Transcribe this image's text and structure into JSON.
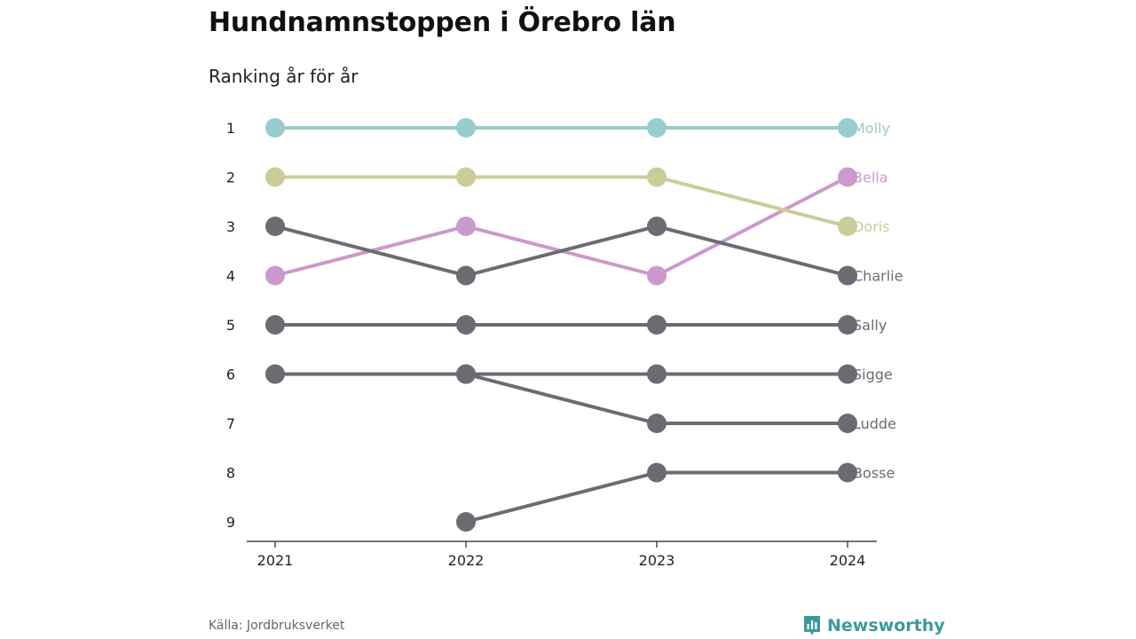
{
  "title": "Hundnamnstoppen i Örebro län",
  "subtitle": "Ranking år för år",
  "source": "Källa: Jordbruksverket",
  "brand": "Newsworthy",
  "colors": {
    "molly": "#99cccc",
    "doris": "#cccc99",
    "bella": "#cc99cc",
    "other": "#6b6b72",
    "axis": "#222222",
    "brand": "#3b9b9a"
  },
  "chart_data": {
    "type": "line",
    "x": [
      "2021",
      "2022",
      "2023",
      "2024"
    ],
    "y_ticks": [
      "1",
      "2",
      "3",
      "4",
      "5",
      "6",
      "7",
      "8",
      "9"
    ],
    "y_inverted": true,
    "ylim": [
      1,
      9
    ],
    "grid": false,
    "legend": "direct labels at right end",
    "series": [
      {
        "name": "Molly",
        "color": "#99cccc",
        "values": [
          1,
          1,
          1,
          1
        ]
      },
      {
        "name": "Bella",
        "color": "#cc99cc",
        "values": [
          4,
          3,
          4,
          2
        ]
      },
      {
        "name": "Doris",
        "color": "#cccc99",
        "values": [
          2,
          2,
          2,
          3
        ]
      },
      {
        "name": "Charlie",
        "color": "#6b6b72",
        "values": [
          3,
          4,
          3,
          4
        ]
      },
      {
        "name": "Sally",
        "color": "#6b6b72",
        "values": [
          5,
          5,
          5,
          5
        ]
      },
      {
        "name": "Sigge",
        "color": "#6b6b72",
        "values": [
          6,
          6,
          6,
          6
        ]
      },
      {
        "name": "Ludde",
        "color": "#6b6b72",
        "values": [
          null,
          6,
          7,
          7
        ]
      },
      {
        "name": "Bosse",
        "color": "#6b6b72",
        "values": [
          null,
          9,
          8,
          8
        ]
      }
    ]
  }
}
